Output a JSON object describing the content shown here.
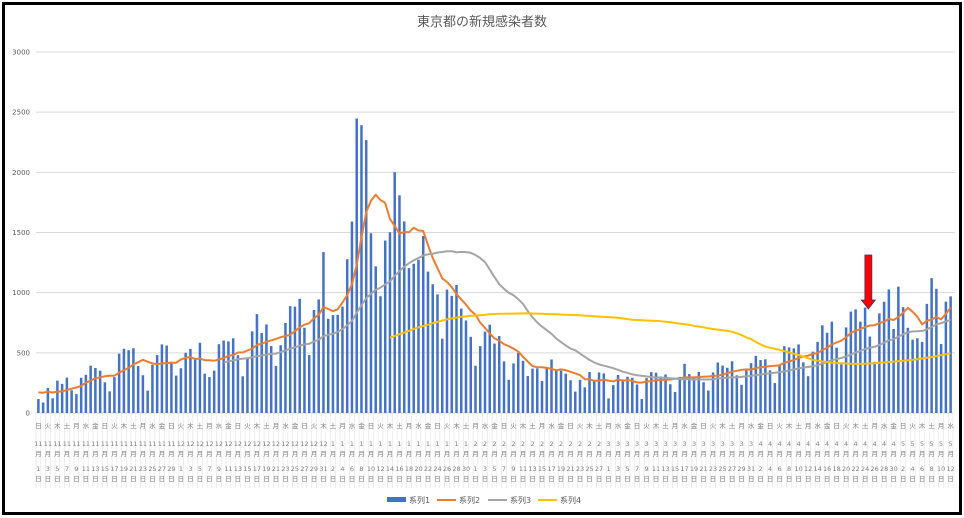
{
  "chart_data": {
    "type": "bar",
    "title": "東京都の新規感染者数",
    "xlabel": "",
    "ylabel": "",
    "ylim": [
      0,
      3000
    ],
    "yticks": [
      0,
      500,
      1000,
      1500,
      2000,
      2500,
      3000
    ],
    "grid": true,
    "legend_position": "bottom",
    "categories": [
      "11月1日",
      "11月2日",
      "11月3日",
      "11月4日",
      "11月5日",
      "11月6日",
      "11月7日",
      "11月8日",
      "11月9日",
      "11月10日",
      "11月11日",
      "11月12日",
      "11月13日",
      "11月14日",
      "11月15日",
      "11月16日",
      "11月17日",
      "11月18日",
      "11月19日",
      "11月20日",
      "11月21日",
      "11月22日",
      "11月23日",
      "11月24日",
      "11月25日",
      "11月26日",
      "11月27日",
      "11月28日",
      "11月29日",
      "11月30日",
      "12月1日",
      "12月2日",
      "12月3日",
      "12月4日",
      "12月5日",
      "12月6日",
      "12月7日",
      "12月8日",
      "12月9日",
      "12月10日",
      "12月11日",
      "12月12日",
      "12月13日",
      "12月14日",
      "12月15日",
      "12月16日",
      "12月17日",
      "12月18日",
      "12月19日",
      "12月20日",
      "12月21日",
      "12月22日",
      "12月23日",
      "12月24日",
      "12月25日",
      "12月26日",
      "12月27日",
      "12月28日",
      "12月29日",
      "12月30日",
      "12月31日",
      "1月1日",
      "1月2日",
      "1月3日",
      "1月4日",
      "1月5日",
      "1月6日",
      "1月7日",
      "1月8日",
      "1月9日",
      "1月10日",
      "1月11日",
      "1月12日",
      "1月13日",
      "1月14日",
      "1月15日",
      "1月16日",
      "1月17日",
      "1月18日",
      "1月19日",
      "1月20日",
      "1月21日",
      "1月22日",
      "1月23日",
      "1月24日",
      "1月25日",
      "1月26日",
      "1月27日",
      "1月28日",
      "1月29日",
      "1月30日",
      "1月31日",
      "2月1日",
      "2月2日",
      "2月3日",
      "2月4日",
      "2月5日",
      "2月6日",
      "2月7日",
      "2月8日",
      "2月9日",
      "2月10日",
      "2月11日",
      "2月12日",
      "2月13日",
      "2月14日",
      "2月15日",
      "2月16日",
      "2月17日",
      "2月18日",
      "2月19日",
      "2月20日",
      "2月21日",
      "2月22日",
      "2月23日",
      "2月24日",
      "2月25日",
      "2月26日",
      "2月27日",
      "2月28日",
      "3月1日",
      "3月2日",
      "3月3日",
      "3月4日",
      "3月5日",
      "3月6日",
      "3月7日",
      "3月8日",
      "3月9日",
      "3月10日",
      "3月11日",
      "3月12日",
      "3月13日",
      "3月14日",
      "3月15日",
      "3月16日",
      "3月17日",
      "3月18日",
      "3月19日",
      "3月20日",
      "3月21日",
      "3月22日",
      "3月23日",
      "3月24日",
      "3月25日",
      "3月26日",
      "3月27日",
      "3月28日",
      "3月29日",
      "3月30日",
      "3月31日",
      "4月1日",
      "4月2日",
      "4月3日",
      "4月4日",
      "4月5日",
      "4月6日",
      "4月7日",
      "4月8日",
      "4月9日",
      "4月10日",
      "4月11日",
      "4月12日",
      "4月13日",
      "4月14日",
      "4月15日",
      "4月16日",
      "4月17日",
      "4月18日",
      "4月19日",
      "4月20日",
      "4月21日",
      "4月22日",
      "4月23日",
      "4月24日",
      "4月25日",
      "4月26日",
      "4月27日",
      "4月28日",
      "4月29日",
      "4月30日",
      "5月1日",
      "5月2日",
      "5月3日",
      "5月4日",
      "5月5日",
      "5月6日",
      "5月7日",
      "5月8日",
      "5月9日",
      "5月10日",
      "5月11日",
      "5月12日"
    ],
    "weekday_cycle": [
      "日",
      "月",
      "火",
      "水",
      "木",
      "金",
      "土"
    ],
    "series": [
      {
        "name": "系列1",
        "type": "bar",
        "color": "#4472c4",
        "values": [
          116,
          87,
          209,
          122,
          269,
          242,
          294,
          189,
          157,
          293,
          317,
          393,
          374,
          352,
          255,
          180,
          298,
          493,
          534,
          522,
          539,
          391,
          314,
          186,
          401,
          481,
          570,
          561,
          418,
          311,
          372,
          500,
          533,
          449,
          584,
          327,
          299,
          352,
          572,
          602,
          595,
          621,
          480,
          305,
          460,
          678,
          822,
          664,
          736,
          556,
          392,
          563,
          748,
          888,
          884,
          949,
          708,
          481,
          856,
          944,
          1337,
          783,
          814,
          816,
          884,
          1278,
          1591,
          2447,
          2392,
          2268,
          1494,
          1219,
          970,
          1433,
          1502,
          2001,
          1809,
          1592,
          1204,
          1240,
          1274,
          1471,
          1175,
          1070,
          986,
          618,
          1026,
          973,
          1064,
          868,
          769,
          633,
          393,
          556,
          676,
          734,
          577,
          639,
          429,
          276,
          412,
          500,
          434,
          307,
          369,
          371,
          266,
          378,
          445,
          353,
          352,
          327,
          272,
          178,
          275,
          213,
          340,
          270,
          337,
          329,
          121,
          232,
          316,
          279,
          301,
          293,
          237,
          116,
          290,
          340,
          335,
          304,
          320,
          239,
          175,
          300,
          409,
          323,
          303,
          342,
          256,
          187,
          337,
          420,
          394,
          376,
          430,
          313,
          234,
          364,
          414,
          475,
          440,
          446,
          355,
          249,
          399,
          555,
          545,
          537,
          570,
          421,
          306,
          510,
          591,
          729,
          667,
          759,
          543,
          405,
          711,
          843,
          861,
          759,
          876,
          635,
          425,
          828,
          925,
          1027,
          698,
          1050,
          879,
          708,
          609,
          621,
          591,
          907,
          1121,
          1032,
          573,
          925,
          969
        ]
      },
      {
        "name": "系列2",
        "type": "line",
        "color": "#ed7d31",
        "values": [
          171,
          169,
          177,
          170,
          177,
          180,
          191,
          202,
          212,
          224,
          252,
          269,
          288,
          296,
          306,
          309,
          310,
          335,
          355,
          376,
          403,
          422,
          442,
          426,
          412,
          405,
          412,
          415,
          419,
          418,
          445,
          459,
          466,
          449,
          452,
          439,
          438,
          435,
          445,
          455,
          476,
          481,
          503,
          504,
          519,
          534,
          566,
          576,
          592,
          603,
          615,
          630,
          640,
          650,
          681,
          711,
          733,
          746,
          788,
          816,
          880,
          865,
          846,
          862,
          919,
          979,
          1072,
          1230,
          1460,
          1668,
          1765,
          1813,
          1769,
          1746,
          1611,
          1555,
          1490,
          1504,
          1502,
          1540,
          1517,
          1513,
          1395,
          1289,
          1203,
          1119,
          1089,
          1046,
          987,
          944,
          901,
          850,
          818,
          751,
          708,
          661,
          620,
          601,
          572,
          555,
          535,
          510,
          467,
          428,
          390,
          381,
          380,
          375,
          367,
          356,
          362,
          356,
          342,
          329,
          315,
          281,
          280,
          268,
          269,
          277,
          269,
          263,
          278,
          269,
          274,
          267,
          254,
          253,
          262,
          265,
          273,
          274,
          277,
          278,
          286,
          288,
          297,
          296,
          296,
          299,
          301,
          303,
          308,
          310,
          320,
          330,
          343,
          351,
          358,
          362,
          361,
          372,
          381,
          384,
          390,
          392,
          397,
          417,
          427,
          441,
          459,
          468,
          476,
          492,
          497,
          523,
          542,
          569,
          586,
          601,
          629,
          665,
          684,
          697,
          714,
          727,
          730,
          747,
          758,
          782,
          773,
          798,
          833,
          874,
          842,
          799,
          737,
          766,
          777,
          798,
          779,
          824,
          874
        ]
      },
      {
        "name": "系列3",
        "type": "line",
        "color": "#a5a5a5",
        "values": [
          null,
          null,
          null,
          null,
          null,
          null,
          null,
          null,
          null,
          null,
          null,
          null,
          null,
          null,
          null,
          null,
          null,
          null,
          null,
          null,
          null,
          null,
          null,
          null,
          null,
          null,
          null,
          null,
          null,
          null,
          null,
          null,
          null,
          null,
          null,
          null,
          null,
          null,
          null,
          420,
          428,
          438,
          446,
          451,
          456,
          463,
          473,
          478,
          485,
          491,
          494,
          507,
          520,
          534,
          546,
          559,
          570,
          576,
          593,
          609,
          638,
          650,
          658,
          675,
          696,
          729,
          766,
          832,
          896,
          954,
          991,
          1023,
          1042,
          1069,
          1093,
          1140,
          1179,
          1216,
          1245,
          1269,
          1288,
          1309,
          1319,
          1323,
          1334,
          1338,
          1344,
          1345,
          1335,
          1339,
          1337,
          1331,
          1313,
          1287,
          1254,
          1193,
          1129,
          1070,
          1032,
          999,
          979,
          945,
          907,
          847,
          795,
          752,
          718,
          688,
          658,
          618,
          589,
          562,
          536,
          521,
          494,
          467,
          441,
          420,
          404,
          393,
          383,
          372,
          359,
          343,
          333,
          321,
          314,
          308,
          304,
          298,
          295,
          295,
          292,
          288,
          284,
          282,
          280,
          280,
          278,
          278,
          278,
          278,
          280,
          288,
          290,
          294,
          297,
          296,
          300,
          305,
          308,
          315,
          320,
          326,
          330,
          335,
          339,
          346,
          354,
          362,
          371,
          378,
          382,
          390,
          396,
          411,
          424,
          439,
          449,
          457,
          470,
          485,
          502,
          515,
          532,
          543,
          550,
          566,
          584,
          604,
          613,
          635,
          654,
          670,
          678,
          680,
          682,
          695,
          715,
          736,
          746,
          761,
          774
        ]
      },
      {
        "name": "系列4",
        "type": "line",
        "color": "#ffc000",
        "values": [
          null,
          null,
          null,
          null,
          null,
          null,
          null,
          null,
          null,
          null,
          null,
          null,
          null,
          null,
          null,
          null,
          null,
          null,
          null,
          null,
          null,
          null,
          null,
          null,
          null,
          null,
          null,
          null,
          null,
          null,
          null,
          null,
          null,
          null,
          null,
          null,
          null,
          null,
          null,
          null,
          null,
          null,
          null,
          null,
          null,
          null,
          null,
          null,
          null,
          null,
          null,
          null,
          null,
          null,
          null,
          null,
          null,
          null,
          null,
          null,
          null,
          null,
          null,
          null,
          null,
          null,
          null,
          null,
          null,
          null,
          null,
          null,
          null,
          null,
          626,
          640,
          655,
          669,
          683,
          698,
          712,
          723,
          734,
          746,
          757,
          768,
          779,
          786,
          793,
          800,
          803,
          807,
          810,
          813,
          816,
          820,
          823,
          824,
          825,
          826,
          826,
          827,
          828,
          829,
          827,
          826,
          824,
          823,
          821,
          820,
          818,
          817,
          815,
          814,
          812,
          809,
          806,
          804,
          801,
          799,
          797,
          794,
          792,
          786,
          780,
          775,
          773,
          771,
          769,
          767,
          765,
          762,
          759,
          754,
          748,
          743,
          737,
          732,
          725,
          718,
          711,
          704,
          698,
          693,
          687,
          682,
          676,
          662,
          648,
          628,
          614,
          590,
          570,
          552,
          543,
          533,
          524,
          514,
          503,
          493,
          482,
          468,
          455,
          441,
          435,
          429,
          424,
          418,
          416,
          413,
          411,
          409,
          407,
          408,
          410,
          411,
          413,
          417,
          420,
          424,
          427,
          431,
          434,
          438,
          441,
          447,
          453,
          459,
          465,
          472,
          480,
          488,
          496
        ]
      }
    ],
    "annotation": {
      "type": "arrow-down",
      "category": "4月25日",
      "color": "#ff0000"
    }
  }
}
